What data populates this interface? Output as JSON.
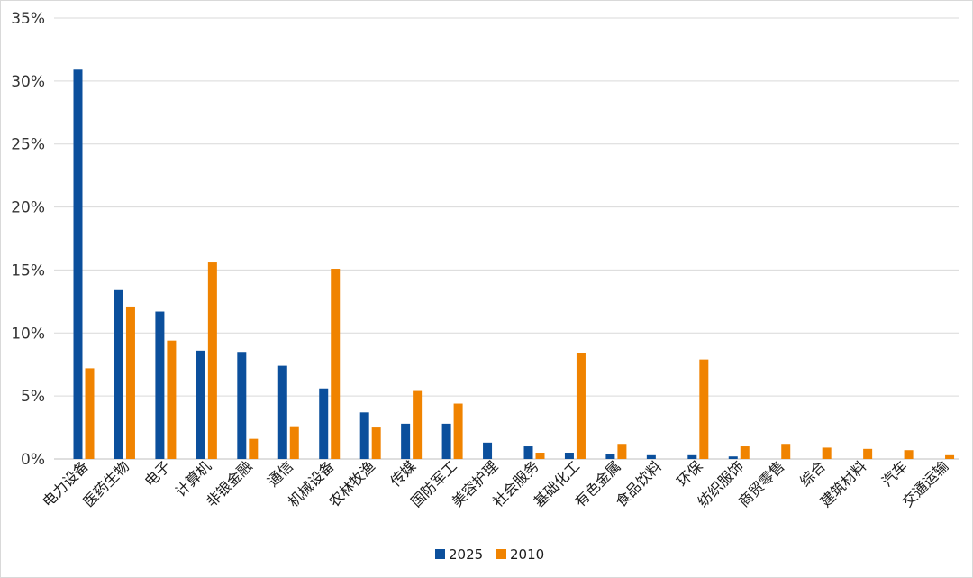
{
  "chart_data": {
    "type": "bar",
    "categories": [
      "电力设备",
      "医药生物",
      "电子",
      "计算机",
      "非银金融",
      "通信",
      "机械设备",
      "农林牧渔",
      "传媒",
      "国防军工",
      "美容护理",
      "社会服务",
      "基础化工",
      "有色金属",
      "食品饮料",
      "环保",
      "纺织服饰",
      "商贸零售",
      "综合",
      "建筑材料",
      "汽车",
      "交通运输"
    ],
    "series": [
      {
        "name": "2025",
        "color": "#0b4f9c",
        "values": [
          30.9,
          13.4,
          11.7,
          8.6,
          8.5,
          7.4,
          5.6,
          3.7,
          2.8,
          2.8,
          1.3,
          1.0,
          0.5,
          0.4,
          0.3,
          0.3,
          0.2,
          0,
          0,
          0,
          0,
          0
        ]
      },
      {
        "name": "2010",
        "color": "#f08300",
        "values": [
          7.2,
          12.1,
          9.4,
          15.6,
          1.6,
          2.6,
          15.1,
          2.5,
          5.4,
          4.4,
          0,
          0.5,
          8.4,
          1.2,
          0,
          7.9,
          1.0,
          1.2,
          0.9,
          0.8,
          0.7,
          0.3
        ]
      }
    ],
    "yticks": [
      "0%",
      "5%",
      "10%",
      "15%",
      "20%",
      "25%",
      "30%",
      "35%"
    ],
    "ylim": [
      0,
      35
    ],
    "grid": true,
    "legend_position": "bottom-center",
    "title": "",
    "xlabel": "",
    "ylabel": ""
  }
}
